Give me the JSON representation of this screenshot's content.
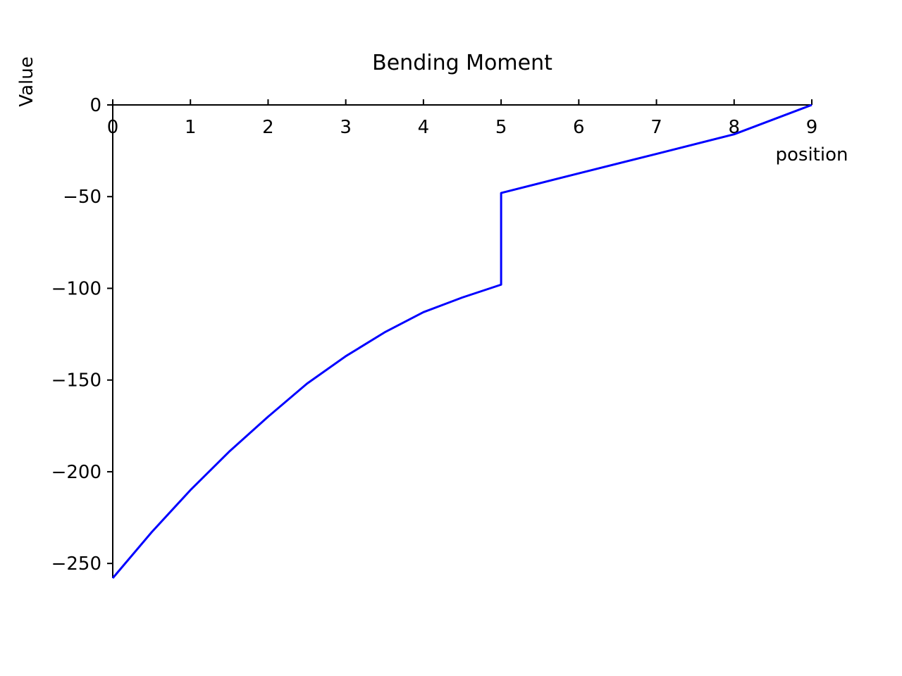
{
  "chart_data": {
    "type": "line",
    "title": "Bending Moment",
    "xlabel": "position",
    "ylabel": "Value",
    "xlim": [
      0,
      9
    ],
    "ylim": [
      -258,
      0
    ],
    "xticks": [
      0,
      1,
      2,
      3,
      4,
      5,
      6,
      7,
      8,
      9
    ],
    "xtick_labels": [
      "0",
      "1",
      "2",
      "3",
      "4",
      "5",
      "6",
      "7",
      "8",
      "9"
    ],
    "yticks": [
      0,
      -50,
      -100,
      -150,
      -200,
      -250
    ],
    "ytick_labels": [
      "0",
      "−50",
      "−100",
      "−150",
      "−200",
      "−250"
    ],
    "grid": false,
    "series_color": "#0000ff",
    "series": [
      {
        "x": [
          0,
          0.5,
          1,
          1.5,
          2,
          2.5,
          3,
          3.5,
          4,
          4.5,
          5,
          5,
          6,
          7,
          8,
          9
        ],
        "y": [
          -258,
          -233,
          -210,
          -189,
          -170,
          -152,
          -137,
          -124,
          -113,
          -105,
          -98,
          -48,
          -37.3,
          -26.7,
          -16,
          0
        ]
      }
    ]
  }
}
